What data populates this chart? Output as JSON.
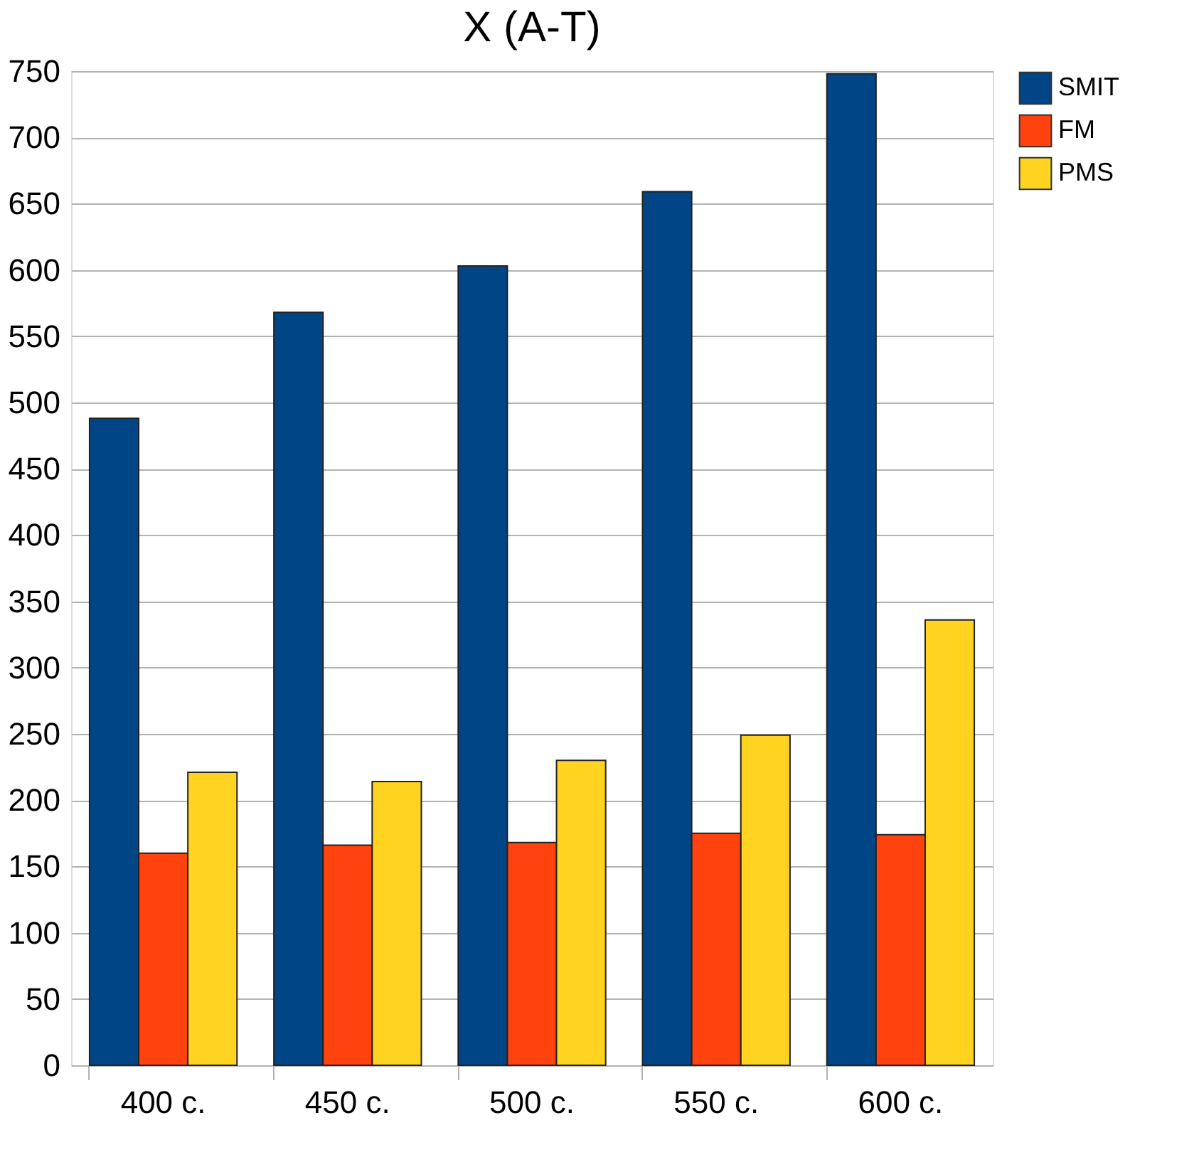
{
  "chart_data": {
    "type": "bar",
    "title": "X (A-T)",
    "categories": [
      "400 c.",
      "450 c.",
      "500 c.",
      "550 c.",
      "600 c."
    ],
    "series": [
      {
        "name": "SMIT",
        "color": "#004586",
        "values": [
          488,
          568,
          603,
          659,
          748
        ]
      },
      {
        "name": "FM",
        "color": "#ff420e",
        "values": [
          160,
          166,
          168,
          175,
          174
        ]
      },
      {
        "name": "PMS",
        "color": "#ffd320",
        "values": [
          221,
          214,
          230,
          249,
          336
        ]
      }
    ],
    "ylim": [
      0,
      750
    ],
    "yticks": [
      0,
      50,
      100,
      150,
      200,
      250,
      300,
      350,
      400,
      450,
      500,
      550,
      600,
      650,
      700,
      750
    ],
    "grid": "y",
    "legend": "right"
  }
}
